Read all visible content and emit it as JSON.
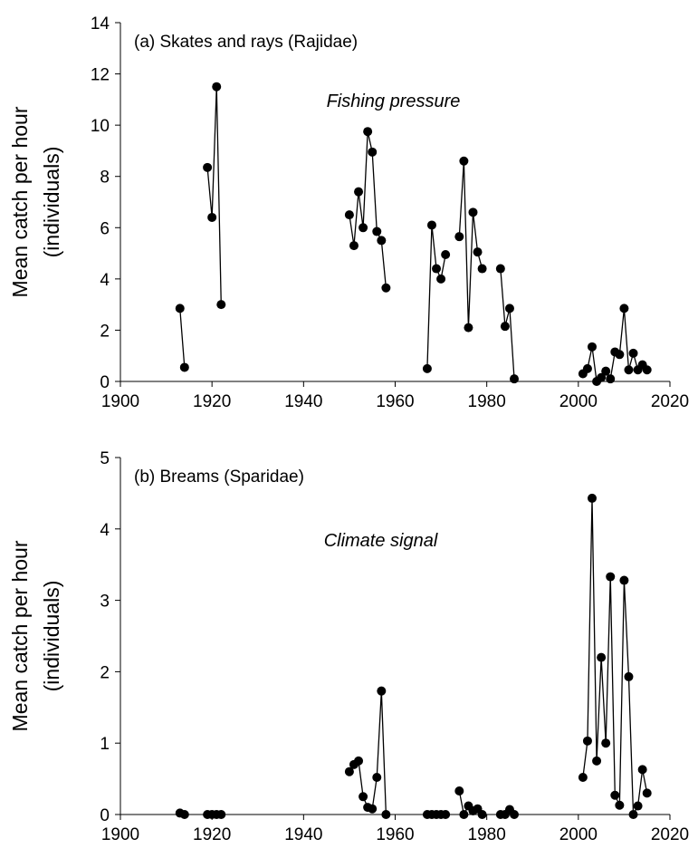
{
  "chart_data": [
    {
      "type": "line",
      "title": "(a) Skates and rays (Rajidae)",
      "annotation": "Fishing pressure",
      "ylabel": [
        "Mean catch per hour",
        "(individuals)"
      ],
      "color": "#000000",
      "xlim": [
        1900,
        2020
      ],
      "xticks": [
        1900,
        1920,
        1940,
        1960,
        1980,
        2000,
        2020
      ],
      "ylim": [
        0,
        14
      ],
      "yticks": [
        0,
        2,
        4,
        6,
        8,
        10,
        12,
        14
      ],
      "x": [
        1913,
        1914,
        1916,
        1919,
        1920,
        1921,
        1922,
        1935,
        1950,
        1951,
        1952,
        1953,
        1954,
        1955,
        1956,
        1957,
        1958,
        1962,
        1967,
        1968,
        1969,
        1970,
        1971,
        1972,
        1974,
        1975,
        1976,
        1977,
        1978,
        1979,
        1981,
        1983,
        1984,
        1985,
        1986,
        1995,
        2001,
        2002,
        2003,
        2004,
        2005,
        2006,
        2007,
        2008,
        2009,
        2010,
        2011,
        2012,
        2013,
        2014,
        2015
      ],
      "values": [
        2.85,
        0.55,
        null,
        8.35,
        6.4,
        11.5,
        3.0,
        null,
        6.5,
        5.3,
        7.4,
        6.0,
        9.75,
        8.95,
        5.85,
        5.5,
        3.65,
        null,
        0.5,
        6.1,
        4.4,
        4.0,
        4.95,
        null,
        5.65,
        8.6,
        2.1,
        6.6,
        5.05,
        4.4,
        null,
        4.4,
        2.15,
        2.85,
        0.1,
        null,
        0.3,
        0.5,
        1.35,
        0.0,
        0.15,
        0.4,
        0.1,
        1.15,
        1.05,
        2.85,
        0.45,
        1.1,
        0.45,
        0.65,
        0.45
      ]
    },
    {
      "type": "line",
      "title": "(b) Breams (Sparidae)",
      "annotation": "Climate signal",
      "ylabel": [
        "Mean catch per hour",
        "(individuals)"
      ],
      "color": "#000000",
      "xlim": [
        1900,
        2020
      ],
      "xticks": [
        1900,
        1920,
        1940,
        1960,
        1980,
        2000,
        2020
      ],
      "ylim": [
        0,
        5
      ],
      "yticks": [
        0,
        1,
        2,
        3,
        4,
        5
      ],
      "x": [
        1913,
        1914,
        1916,
        1919,
        1920,
        1921,
        1922,
        1935,
        1950,
        1951,
        1952,
        1953,
        1954,
        1955,
        1956,
        1957,
        1958,
        1962,
        1967,
        1968,
        1969,
        1970,
        1971,
        1972,
        1974,
        1975,
        1976,
        1977,
        1978,
        1979,
        1981,
        1983,
        1984,
        1985,
        1986,
        1995,
        2001,
        2002,
        2003,
        2004,
        2005,
        2006,
        2007,
        2008,
        2009,
        2010,
        2011,
        2012,
        2013,
        2014,
        2015
      ],
      "values": [
        0.02,
        0.0,
        null,
        0,
        0,
        0,
        0,
        null,
        0.6,
        0.7,
        0.75,
        0.25,
        0.1,
        0.08,
        0.52,
        1.73,
        0,
        null,
        0,
        0,
        0,
        0,
        0,
        null,
        0.33,
        0,
        0.12,
        0.05,
        0.08,
        0,
        null,
        0,
        0,
        0.07,
        0,
        null,
        0.52,
        1.03,
        4.43,
        0.75,
        2.2,
        1.0,
        3.33,
        0.27,
        0.13,
        3.28,
        1.93,
        0,
        0.12,
        0.63,
        0.3
      ]
    }
  ]
}
